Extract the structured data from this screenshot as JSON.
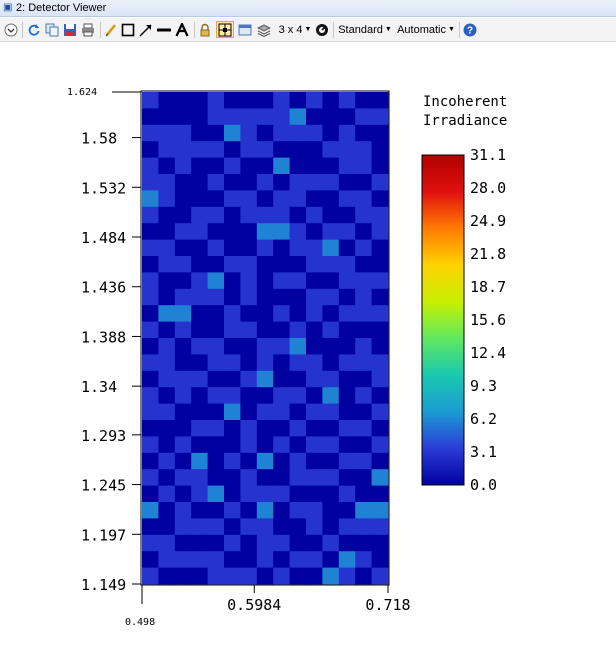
{
  "window": {
    "title": "2: Detector Viewer"
  },
  "toolbar": {
    "layout_label": "3 x 4",
    "style_label": "Standard",
    "scale_label": "Automatic"
  },
  "icons": [
    "collapse-icon",
    "refresh-icon",
    "copy-icon",
    "save-icon",
    "print-icon",
    "pencil-icon",
    "rectangle-icon",
    "arrow-icon",
    "line-icon",
    "text-icon",
    "lock-icon",
    "fit-icon",
    "window-icon",
    "layers-icon",
    "zoom-icon",
    "help-icon"
  ],
  "chart_data": {
    "type": "heatmap",
    "xlabel": "",
    "ylabel": "",
    "x_range": [
      0.498,
      0.718
    ],
    "y_range": [
      1.149,
      1.624
    ],
    "x_ticks": [
      {
        "value": 0.498,
        "label": "0.498"
      },
      {
        "value": 0.5984,
        "label": "0.5984"
      },
      {
        "value": 0.718,
        "label": "0.718"
      }
    ],
    "y_ticks": [
      {
        "value": 1.624,
        "label": "1.624"
      },
      {
        "value": 1.58,
        "label": "1.58"
      },
      {
        "value": 1.532,
        "label": "1.532"
      },
      {
        "value": 1.484,
        "label": "1.484"
      },
      {
        "value": 1.436,
        "label": "1.436"
      },
      {
        "value": 1.388,
        "label": "1.388"
      },
      {
        "value": 1.34,
        "label": "1.34"
      },
      {
        "value": 1.293,
        "label": "1.293"
      },
      {
        "value": 1.245,
        "label": "1.245"
      },
      {
        "value": 1.197,
        "label": "1.197"
      },
      {
        "value": 1.149,
        "label": "1.149"
      }
    ],
    "colorbar": {
      "title": "Incoherent Irradiance",
      "title_lines": [
        "Incoherent",
        "Irradiance"
      ],
      "min": 0.0,
      "max": 31.1,
      "tick_labels": [
        "31.1",
        "28.0",
        "24.9",
        "21.8",
        "18.7",
        "15.6",
        "12.4",
        "9.3",
        "6.2",
        "3.1",
        "0.0"
      ],
      "colors": [
        "#0000a0",
        "#2b3cd6",
        "#1b9bd2",
        "#19c9b0",
        "#60e860",
        "#c8f000",
        "#ffd200",
        "#ff7a00",
        "#e01010",
        "#b00000"
      ]
    },
    "grid": false,
    "cols": 15,
    "rows": 30,
    "values": [
      [
        3,
        0,
        0,
        0,
        3,
        0,
        0,
        0,
        3,
        0,
        3,
        0,
        3,
        0,
        0
      ],
      [
        0,
        0,
        0,
        0,
        3,
        3,
        3,
        3,
        3,
        6,
        0,
        0,
        0,
        3,
        3
      ],
      [
        3,
        3,
        3,
        0,
        0,
        6,
        3,
        0,
        3,
        3,
        3,
        0,
        3,
        0,
        0
      ],
      [
        0,
        3,
        3,
        3,
        3,
        0,
        3,
        3,
        0,
        0,
        0,
        3,
        3,
        3,
        0
      ],
      [
        3,
        0,
        3,
        0,
        0,
        3,
        0,
        0,
        6,
        0,
        0,
        0,
        3,
        3,
        0
      ],
      [
        3,
        3,
        0,
        0,
        3,
        0,
        0,
        3,
        0,
        3,
        3,
        3,
        0,
        0,
        3
      ],
      [
        6,
        3,
        0,
        0,
        0,
        3,
        3,
        0,
        3,
        3,
        0,
        0,
        3,
        3,
        0
      ],
      [
        3,
        0,
        0,
        3,
        3,
        0,
        3,
        3,
        3,
        0,
        3,
        0,
        0,
        3,
        3
      ],
      [
        0,
        0,
        3,
        3,
        0,
        0,
        0,
        6,
        6,
        3,
        0,
        3,
        3,
        0,
        3
      ],
      [
        3,
        3,
        0,
        0,
        3,
        0,
        0,
        3,
        0,
        3,
        3,
        6,
        0,
        3,
        0
      ],
      [
        0,
        3,
        3,
        0,
        0,
        3,
        3,
        0,
        0,
        0,
        3,
        3,
        3,
        0,
        0
      ],
      [
        3,
        0,
        0,
        3,
        6,
        0,
        3,
        0,
        3,
        3,
        0,
        0,
        3,
        3,
        3
      ],
      [
        3,
        0,
        3,
        3,
        3,
        0,
        3,
        0,
        0,
        0,
        3,
        3,
        0,
        3,
        0
      ],
      [
        0,
        6,
        6,
        0,
        0,
        3,
        0,
        0,
        3,
        0,
        3,
        0,
        3,
        3,
        3
      ],
      [
        3,
        0,
        3,
        0,
        0,
        3,
        3,
        0,
        0,
        3,
        0,
        3,
        0,
        0,
        0
      ],
      [
        0,
        3,
        0,
        3,
        3,
        0,
        0,
        3,
        3,
        6,
        0,
        0,
        0,
        3,
        0
      ],
      [
        3,
        3,
        0,
        0,
        3,
        3,
        0,
        3,
        0,
        3,
        3,
        0,
        3,
        3,
        3
      ],
      [
        0,
        3,
        3,
        3,
        0,
        0,
        3,
        6,
        0,
        0,
        3,
        3,
        0,
        0,
        3
      ],
      [
        3,
        0,
        3,
        0,
        3,
        3,
        0,
        0,
        3,
        3,
        0,
        6,
        0,
        3,
        0
      ],
      [
        3,
        3,
        0,
        0,
        0,
        6,
        0,
        3,
        3,
        0,
        3,
        3,
        0,
        0,
        3
      ],
      [
        0,
        0,
        0,
        3,
        3,
        0,
        3,
        0,
        0,
        3,
        0,
        0,
        3,
        3,
        0
      ],
      [
        3,
        0,
        3,
        0,
        0,
        0,
        3,
        0,
        3,
        0,
        3,
        3,
        0,
        0,
        3
      ],
      [
        0,
        3,
        0,
        6,
        0,
        3,
        0,
        6,
        0,
        3,
        0,
        0,
        3,
        3,
        0
      ],
      [
        3,
        0,
        3,
        3,
        0,
        0,
        3,
        0,
        0,
        3,
        3,
        3,
        0,
        0,
        6
      ],
      [
        0,
        3,
        0,
        3,
        6,
        0,
        3,
        3,
        3,
        0,
        0,
        0,
        3,
        0,
        0
      ],
      [
        6,
        0,
        3,
        0,
        0,
        3,
        0,
        6,
        0,
        3,
        3,
        0,
        0,
        6,
        6
      ],
      [
        0,
        0,
        3,
        3,
        3,
        0,
        3,
        3,
        0,
        0,
        3,
        0,
        3,
        3,
        3
      ],
      [
        3,
        3,
        0,
        0,
        0,
        3,
        0,
        3,
        3,
        0,
        0,
        3,
        0,
        0,
        0
      ],
      [
        0,
        3,
        3,
        3,
        3,
        0,
        0,
        3,
        0,
        3,
        3,
        0,
        6,
        3,
        0
      ],
      [
        3,
        0,
        0,
        0,
        3,
        3,
        3,
        0,
        3,
        0,
        0,
        6,
        3,
        0,
        3
      ]
    ]
  }
}
